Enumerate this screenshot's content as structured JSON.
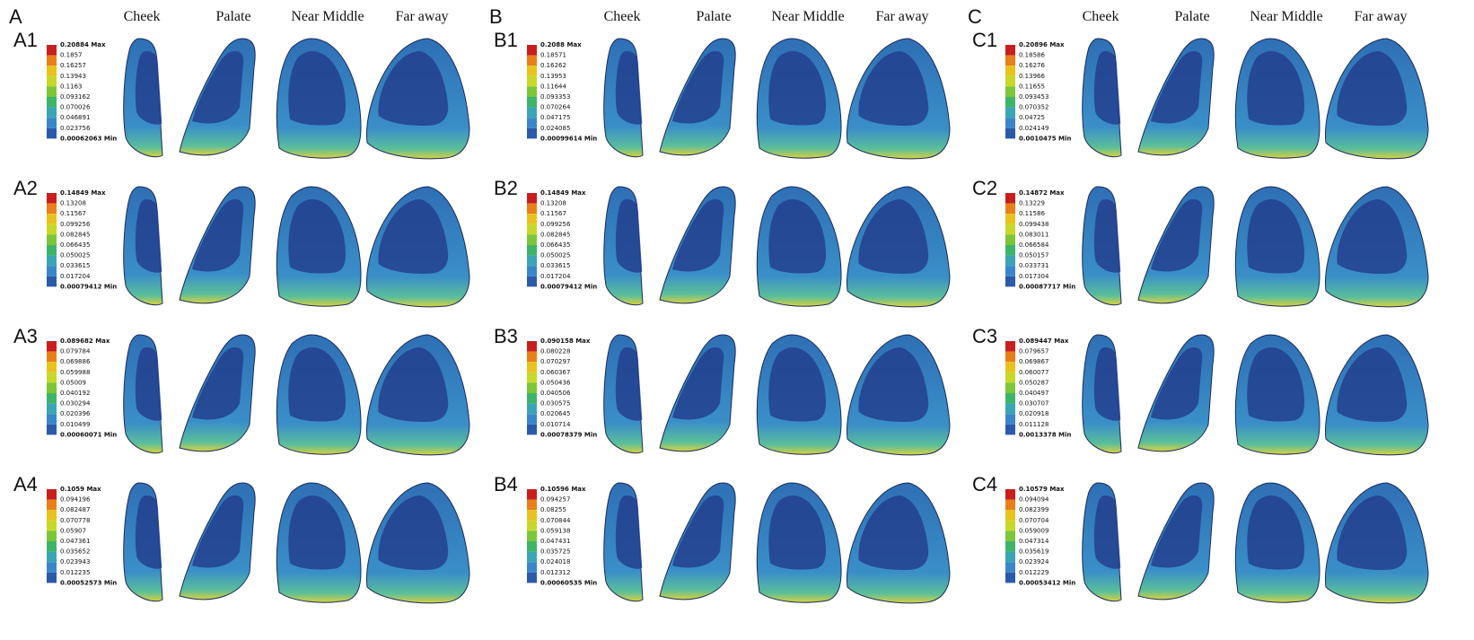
{
  "panels": [
    {
      "label": "A",
      "columns": [
        "Cheek",
        "Palate",
        "Near Middle",
        "Far away"
      ],
      "rows": [
        {
          "label": "A1",
          "legend": [
            "0.20884 Max",
            "0.1857",
            "0.16257",
            "0.13943",
            "0.1163",
            "0.093162",
            "0.070026",
            "0.046891",
            "0.023756",
            "0.00062063 Min"
          ]
        },
        {
          "label": "A2",
          "legend": [
            "0.14849 Max",
            "0.13208",
            "0.11567",
            "0.099256",
            "0.082845",
            "0.066435",
            "0.050025",
            "0.033615",
            "0.017204",
            "0.00079412 Min"
          ]
        },
        {
          "label": "A3",
          "legend": [
            "0.089682 Max",
            "0.079784",
            "0.069886",
            "0.059988",
            "0.05009",
            "0.040192",
            "0.030294",
            "0.020396",
            "0.010499",
            "0.00060071 Min"
          ]
        },
        {
          "label": "A4",
          "legend": [
            "0.1059 Max",
            "0.094196",
            "0.082487",
            "0.070778",
            "0.05907",
            "0.047361",
            "0.035652",
            "0.023943",
            "0.012235",
            "0.00052573 Min"
          ]
        }
      ]
    },
    {
      "label": "B",
      "columns": [
        "Cheek",
        "Palate",
        "Near Middle",
        "Far away"
      ],
      "rows": [
        {
          "label": "B1",
          "legend": [
            "0.2088 Max",
            "0.18571",
            "0.16262",
            "0.13953",
            "0.11644",
            "0.093353",
            "0.070264",
            "0.047175",
            "0.024085",
            "0.00099614 Min"
          ]
        },
        {
          "label": "B2",
          "legend": [
            "0.14849 Max",
            "0.13208",
            "0.11567",
            "0.099256",
            "0.082845",
            "0.066435",
            "0.050025",
            "0.033615",
            "0.017204",
            "0.00079412 Min"
          ]
        },
        {
          "label": "B3",
          "legend": [
            "0.090158 Max",
            "0.080228",
            "0.070297",
            "0.060367",
            "0.050436",
            "0.040506",
            "0.030575",
            "0.020645",
            "0.010714",
            "0.00078379 Min"
          ]
        },
        {
          "label": "B4",
          "legend": [
            "0.10596 Max",
            "0.094257",
            "0.08255",
            "0.070844",
            "0.059138",
            "0.047431",
            "0.035725",
            "0.024018",
            "0.012312",
            "0.00060535 Min"
          ]
        }
      ]
    },
    {
      "label": "C",
      "columns": [
        "Cheek",
        "Palate",
        "Near Middle",
        "Far away"
      ],
      "rows": [
        {
          "label": "C1",
          "legend": [
            "0.20896 Max",
            "0.18586",
            "0.16276",
            "0.13966",
            "0.11655",
            "0.093453",
            "0.070352",
            "0.04725",
            "0.024149",
            "0.0010475 Min"
          ]
        },
        {
          "label": "C2",
          "legend": [
            "0.14872 Max",
            "0.13229",
            "0.11586",
            "0.099438",
            "0.083011",
            "0.066584",
            "0.050157",
            "0.033731",
            "0.017304",
            "0.00087717 Min"
          ]
        },
        {
          "label": "C3",
          "legend": [
            "0.089447 Max",
            "0.079657",
            "0.069867",
            "0.060077",
            "0.050287",
            "0.040497",
            "0.030707",
            "0.020918",
            "0.011128",
            "0.0013378 Min"
          ]
        },
        {
          "label": "C4",
          "legend": [
            "0.10579 Max",
            "0.094094",
            "0.082399",
            "0.070704",
            "0.059009",
            "0.047314",
            "0.035619",
            "0.023924",
            "0.012229",
            "0.00053412 Min"
          ]
        }
      ]
    }
  ]
}
